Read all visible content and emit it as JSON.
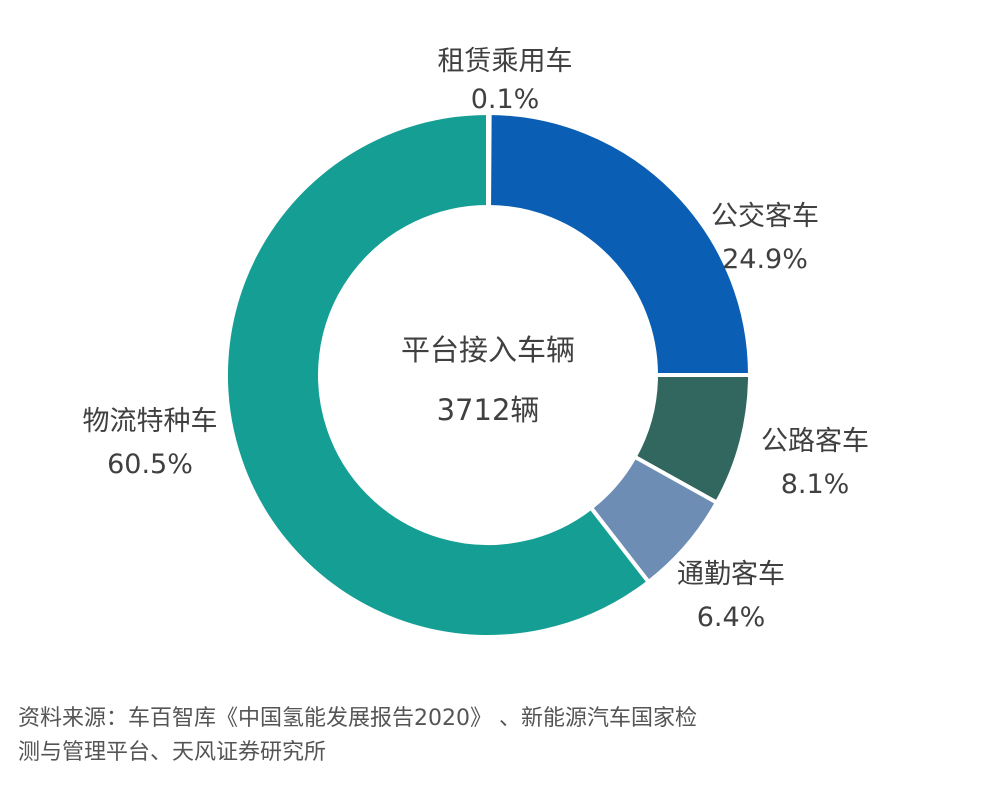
{
  "chart_data": {
    "type": "pie",
    "donut": true,
    "center_label": {
      "line1": "平台接入车辆",
      "line2": "3712辆"
    },
    "slices": [
      {
        "name": "租赁乘用车",
        "value": 0.1,
        "label": "0.1%",
        "color": "#7f9fc4"
      },
      {
        "name": "公交客车",
        "value": 24.9,
        "label": "24.9%",
        "color": "#0a5fb4"
      },
      {
        "name": "公路客车",
        "value": 8.1,
        "label": "8.1%",
        "color": "#31675f"
      },
      {
        "name": "通勤客车",
        "value": 6.4,
        "label": "6.4%",
        "color": "#6d8db5"
      },
      {
        "name": "物流特种车",
        "value": 60.5,
        "label": "60.5%",
        "color": "#159e94"
      }
    ]
  },
  "footer": {
    "source_line1": "资料来源：车百智库《中国氢能发展报告2020》 、新能源汽车国家检",
    "source_line2": "测与管理平台、天风证券研究所"
  }
}
